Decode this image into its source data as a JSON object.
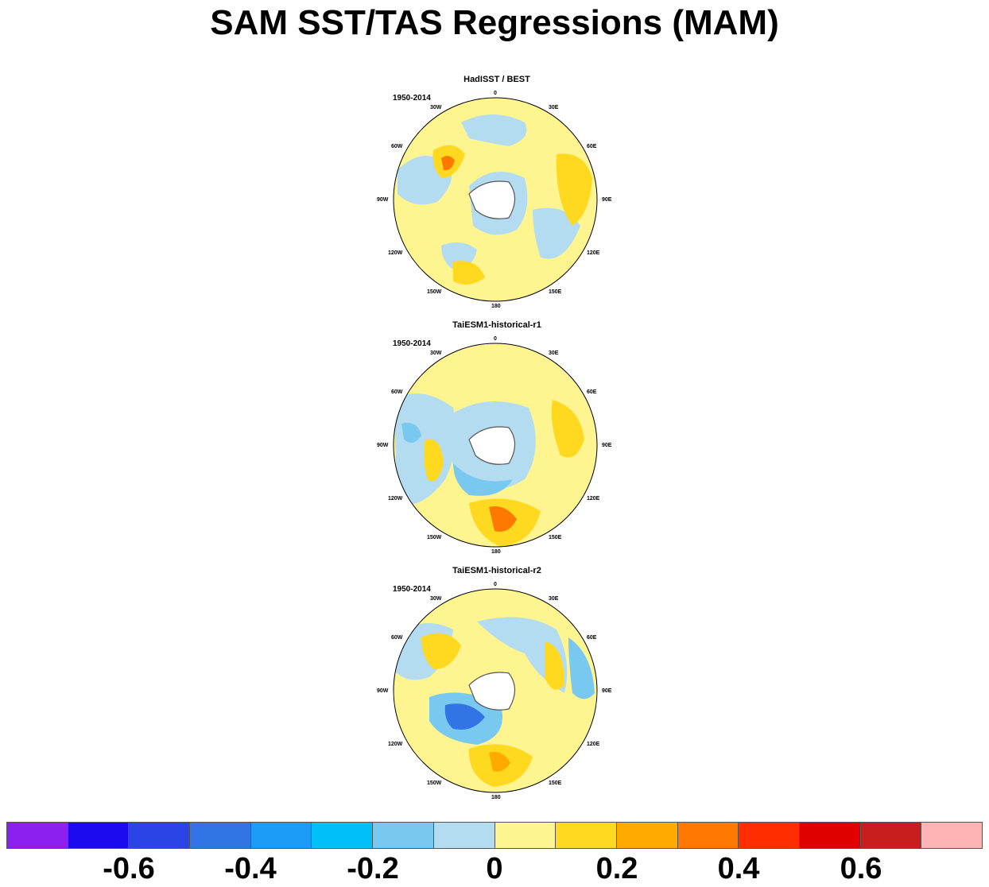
{
  "title": "SAM SST/TAS Regressions (MAM)",
  "panels": [
    {
      "title": "HadISST / BEST",
      "period": "1950-2014"
    },
    {
      "title": "TaiESM1-historical-r1",
      "period": "1950-2014"
    },
    {
      "title": "TaiESM1-historical-r2",
      "period": "1950-2014"
    }
  ],
  "lon_labels": [
    "0",
    "30E",
    "60E",
    "90E",
    "120E",
    "150E",
    "180",
    "150W",
    "120W",
    "90W",
    "60W",
    "30W"
  ],
  "colorbar": {
    "colors": [
      "#8c20f0",
      "#1e0af0",
      "#2a44e6",
      "#3274e6",
      "#1c9cf8",
      "#00c0f8",
      "#78c8f0",
      "#b4dcf0",
      "#fff590",
      "#ffd820",
      "#ffaa00",
      "#ff7800",
      "#ff2d00",
      "#e10000",
      "#c81e1e",
      "#ffb4b4"
    ],
    "labels": [
      "-0.6",
      "-0.4",
      "-0.2",
      "0",
      "0.2",
      "0.4",
      "0.6"
    ]
  }
}
